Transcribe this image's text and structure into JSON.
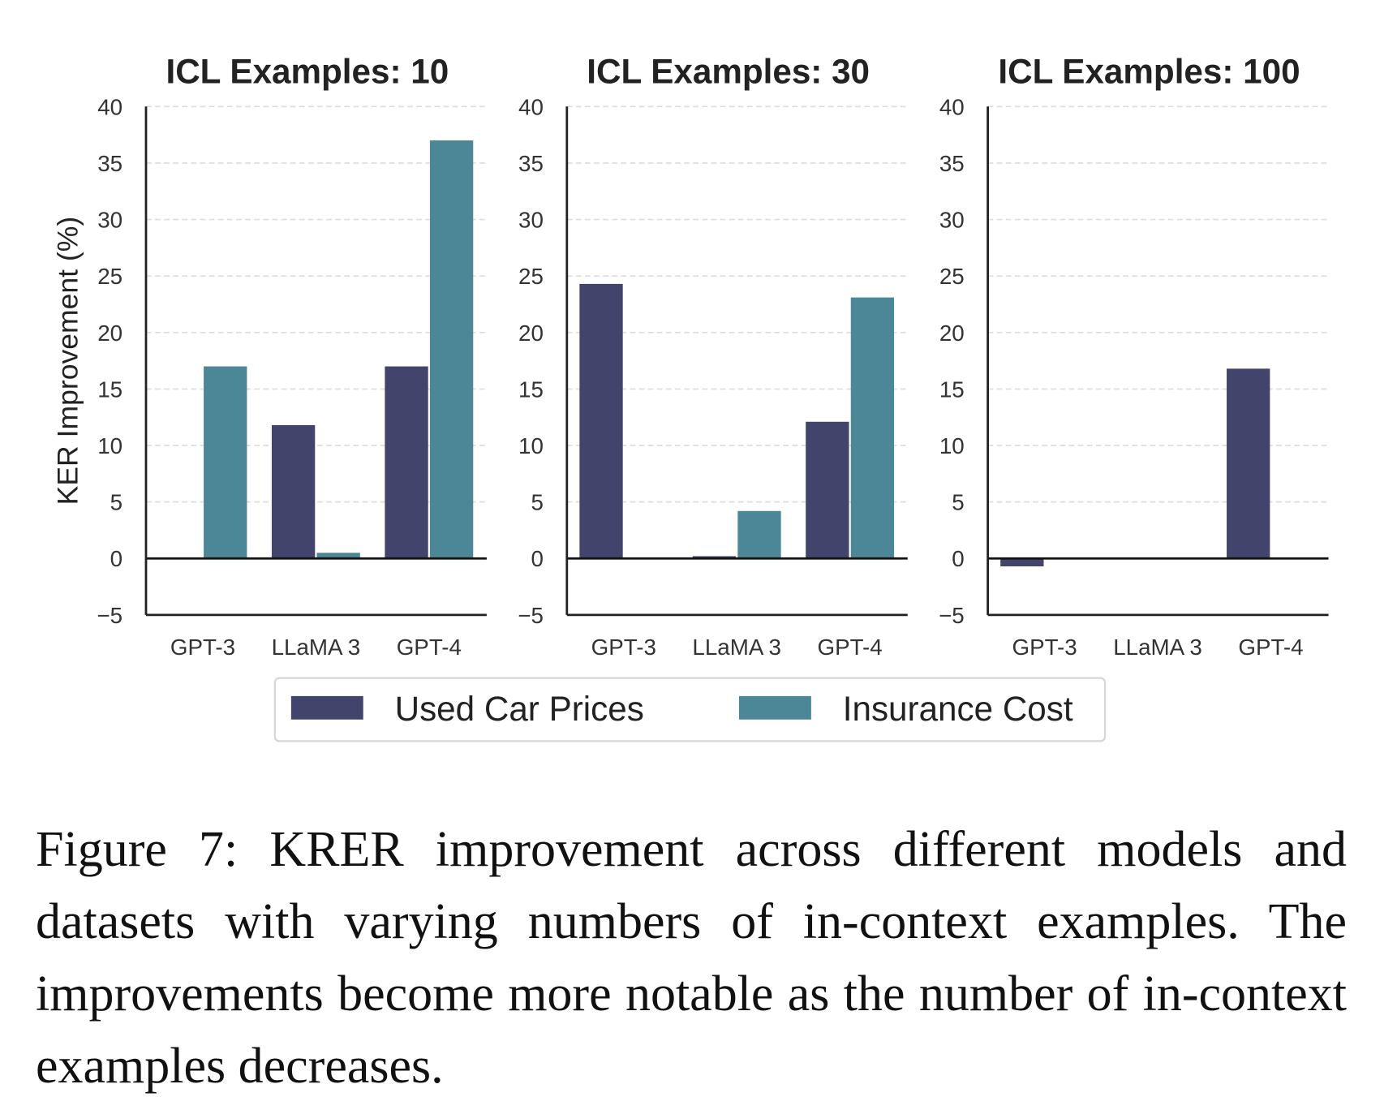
{
  "chart_data": [
    {
      "type": "bar",
      "title": "ICL Examples: 10",
      "categories": [
        "GPT-3",
        "LLaMA 3",
        "GPT-4"
      ],
      "series": [
        {
          "name": "Used Car Prices",
          "values": [
            0,
            11.8,
            17.0
          ]
        },
        {
          "name": "Insurance Cost",
          "values": [
            17.0,
            0.5,
            37.0
          ]
        }
      ],
      "ylabel": "KER Improvement (%)",
      "ylim": [
        -5,
        40
      ],
      "yticks": [
        "−5",
        "0",
        "5",
        "10",
        "15",
        "20",
        "25",
        "30",
        "35",
        "40"
      ],
      "grid": "horizontal dashed"
    },
    {
      "type": "bar",
      "title": "ICL Examples: 30",
      "categories": [
        "GPT-3",
        "LLaMA 3",
        "GPT-4"
      ],
      "series": [
        {
          "name": "Used Car Prices",
          "values": [
            24.3,
            0.2,
            12.1
          ]
        },
        {
          "name": "Insurance Cost",
          "values": [
            0,
            4.2,
            23.1
          ]
        }
      ],
      "ylim": [
        -5,
        40
      ],
      "yticks": [
        "−5",
        "0",
        "5",
        "10",
        "15",
        "20",
        "25",
        "30",
        "35",
        "40"
      ],
      "grid": "horizontal dashed"
    },
    {
      "type": "bar",
      "title": "ICL Examples: 100",
      "categories": [
        "GPT-3",
        "LLaMA 3",
        "GPT-4"
      ],
      "series": [
        {
          "name": "Used Car Prices",
          "values": [
            -0.7,
            0,
            16.8
          ]
        },
        {
          "name": "Insurance Cost",
          "values": [
            0,
            0,
            0
          ]
        }
      ],
      "ylim": [
        -5,
        40
      ],
      "yticks": [
        "−5",
        "0",
        "5",
        "10",
        "15",
        "20",
        "25",
        "30",
        "35",
        "40"
      ],
      "grid": "horizontal dashed"
    }
  ],
  "legend": {
    "placement": "bottom-center",
    "items": [
      {
        "label": "Used Car Prices",
        "color": "#43446b"
      },
      {
        "label": "Insurance Cost",
        "color": "#4c8797"
      }
    ]
  },
  "caption": "Figure 7: KRER improvement across different models and datasets with varying numbers of in-context examples. The improvements become more notable as the number of in-context examples decreases."
}
